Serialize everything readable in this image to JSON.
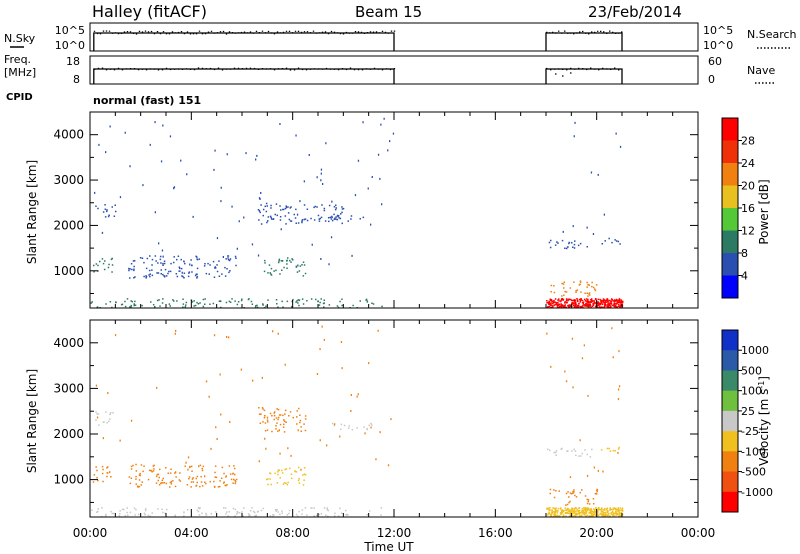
{
  "header": {
    "station": "Halley (fitACF)",
    "beam": "Beam 15",
    "date": "23/Feb/2014"
  },
  "panel_labels": {
    "nsky": "N.Sky",
    "freq": "Freq.",
    "freq_unit": "[MHz]",
    "cpid": "CPID",
    "nsearch": "N.Search",
    "nave": "Nave",
    "cpid_value": "normal (fast) 151"
  },
  "chart_data": [
    {
      "type": "line",
      "name": "nsky-nsearch-strip",
      "y_left_ticks": [
        "10^5",
        "10^0"
      ],
      "y_right_ticks": [
        "10^5",
        "10^0"
      ],
      "segments_hours": [
        [
          0.15,
          12.0
        ],
        [
          18.0,
          21.0
        ]
      ],
      "xlim": [
        0,
        24
      ]
    },
    {
      "type": "line",
      "name": "freq-nave-strip",
      "y_left_ticks": [
        "18",
        "8"
      ],
      "y_right_ticks": [
        "60",
        "0"
      ],
      "segments_hours": [
        [
          0.15,
          12.0
        ],
        [
          18.0,
          21.0
        ]
      ],
      "xlim": [
        0,
        24
      ]
    },
    {
      "type": "heatmap",
      "name": "power",
      "ylabel": "Slant Range [km]",
      "ylim": [
        180,
        4500
      ],
      "yticks": [
        1000,
        2000,
        3000,
        4000
      ],
      "colorbar": {
        "label": "Power [dB]",
        "ticks": [
          "4",
          "8",
          "12",
          "16",
          "20",
          "24",
          "28"
        ],
        "colors": [
          "#0000ff",
          "#2a4fb0",
          "#2c7a64",
          "#55c838",
          "#e8c020",
          "#f08010",
          "#f03008",
          "#ff0000"
        ]
      },
      "scatter_regions": [
        {
          "t": [
            0.2,
            1.0
          ],
          "r": [
            2200,
            2500
          ],
          "color": "#2a4fb0"
        },
        {
          "t": [
            0.1,
            0.9
          ],
          "r": [
            950,
            1300
          ],
          "color": "#2c7a64"
        },
        {
          "t": [
            1.5,
            5.8
          ],
          "r": [
            850,
            1350
          ],
          "color": "#2a4fb0"
        },
        {
          "t": [
            6.6,
            10.0
          ],
          "r": [
            2050,
            2500
          ],
          "color": "#2a4fb0"
        },
        {
          "t": [
            9.5,
            11.2
          ],
          "r": [
            2100,
            2250
          ],
          "color": "#2a4fb0"
        },
        {
          "t": [
            6.8,
            8.5
          ],
          "r": [
            900,
            1300
          ],
          "color": "#2c7a64"
        },
        {
          "t": [
            0.0,
            11.5
          ],
          "r": [
            200,
            400
          ],
          "color": "#2c7a64"
        },
        {
          "t": [
            18.0,
            19.8
          ],
          "r": [
            1500,
            1700
          ],
          "color": "#2a4fb0"
        },
        {
          "t": [
            20.0,
            20.9
          ],
          "r": [
            1600,
            1750
          ],
          "color": "#2a4fb0"
        },
        {
          "t": [
            18.1,
            20.0
          ],
          "r": [
            450,
            800
          ],
          "color": "#f08010"
        },
        {
          "t": [
            18.0,
            21.0
          ],
          "r": [
            200,
            400
          ],
          "color": "#ff0000"
        }
      ]
    },
    {
      "type": "heatmap",
      "name": "velocity",
      "ylabel": "Slant Range [km]",
      "xlabel": "Time UT",
      "xticks": [
        "00:00",
        "04:00",
        "08:00",
        "12:00",
        "16:00",
        "20:00",
        "00:00"
      ],
      "ylim": [
        180,
        4500
      ],
      "yticks": [
        1000,
        2000,
        3000,
        4000
      ],
      "colorbar": {
        "label": "Velocity [m s^-1]",
        "ticks": [
          "1000",
          "500",
          "100",
          "25",
          "-25",
          "-100",
          "-500",
          "-1000"
        ],
        "colors": [
          "#1030c8",
          "#2a5aa8",
          "#3a8a6a",
          "#70c040",
          "#c8c8c8",
          "#f0c020",
          "#f08010",
          "#f05010",
          "#ff0000"
        ]
      },
      "scatter_regions": [
        {
          "t": [
            0.2,
            1.0
          ],
          "r": [
            2200,
            2500
          ],
          "color": "#c8c8c8"
        },
        {
          "t": [
            0.1,
            0.9
          ],
          "r": [
            950,
            1300
          ],
          "color": "#f08010"
        },
        {
          "t": [
            1.5,
            5.8
          ],
          "r": [
            850,
            1350
          ],
          "color": "#f08010"
        },
        {
          "t": [
            6.6,
            8.5
          ],
          "r": [
            2050,
            2600
          ],
          "color": "#f08010"
        },
        {
          "t": [
            9.5,
            11.2
          ],
          "r": [
            2100,
            2250
          ],
          "color": "#c8c8c8"
        },
        {
          "t": [
            6.8,
            8.5
          ],
          "r": [
            900,
            1300
          ],
          "color": "#f0c020"
        },
        {
          "t": [
            0.0,
            11.5
          ],
          "r": [
            200,
            400
          ],
          "color": "#c8c8c8"
        },
        {
          "t": [
            18.0,
            19.8
          ],
          "r": [
            1500,
            1700
          ],
          "color": "#c8c8c8"
        },
        {
          "t": [
            20.0,
            20.9
          ],
          "r": [
            1600,
            1750
          ],
          "color": "#f0c020"
        },
        {
          "t": [
            18.1,
            20.0
          ],
          "r": [
            450,
            800
          ],
          "color": "#f08010"
        },
        {
          "t": [
            18.0,
            21.0
          ],
          "r": [
            200,
            400
          ],
          "color": "#f0c020"
        }
      ]
    }
  ]
}
